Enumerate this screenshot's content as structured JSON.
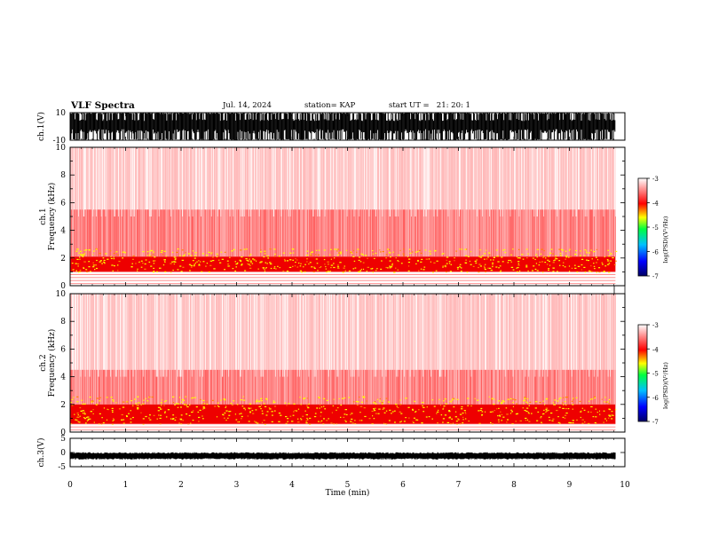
{
  "header": {
    "title": "VLF Spectra",
    "date": "Jul. 14, 2024",
    "station": "station= KAP",
    "start_ut": "start UT =   21: 20: 1"
  },
  "chart_data": [
    {
      "type": "line",
      "name": "ch1-waveform",
      "ylabel": "ch.1(V)",
      "ylim": [
        -10,
        10
      ],
      "yticks": [
        "10",
        "-10"
      ],
      "xlim": [
        0,
        10
      ],
      "data_end_min": 9.83
    },
    {
      "type": "heatmap",
      "name": "ch1-spectrogram",
      "ylabel": "ch.1\nFrequency (kHz)",
      "ylim": [
        0,
        10
      ],
      "yticks": [
        "0",
        "2",
        "4",
        "6",
        "8",
        "10"
      ],
      "xlim": [
        0,
        10
      ],
      "data_end_min": 9.83,
      "intense_band_khz": [
        1.0,
        2.1
      ],
      "moderate_band_khz": [
        2.1,
        5.5
      ],
      "colorbar": {
        "label": "log(PSD)(V²/Hz)",
        "range": [
          -7,
          -3
        ],
        "ticks": [
          "-3",
          "-4",
          "-5",
          "-6",
          "-7"
        ]
      }
    },
    {
      "type": "heatmap",
      "name": "ch2-spectrogram",
      "ylabel": "ch.2\nFrequency (kHz)",
      "ylim": [
        0,
        10
      ],
      "yticks": [
        "0",
        "2",
        "4",
        "6",
        "8",
        "10"
      ],
      "xlim": [
        0,
        10
      ],
      "data_end_min": 9.83,
      "intense_band_khz": [
        0.6,
        2.0
      ],
      "moderate_band_khz": [
        2.0,
        4.5
      ],
      "colorbar": {
        "label": "log(PSD)(V²/Hz)",
        "range": [
          -7,
          -3
        ],
        "ticks": [
          "-3",
          "-4",
          "-5",
          "-6",
          "-7"
        ]
      }
    },
    {
      "type": "line",
      "name": "ch3-waveform",
      "ylabel": "ch.3(V)",
      "ylim": [
        -5,
        5
      ],
      "yticks": [
        "5",
        "0",
        "-5"
      ],
      "xlim": [
        0,
        10
      ],
      "data_end_min": 9.83,
      "baseline_v": -1.2
    }
  ],
  "x_axis": {
    "label": "Time (min)",
    "ticks": [
      "0",
      "1",
      "2",
      "3",
      "4",
      "5",
      "6",
      "7",
      "8",
      "9",
      "10"
    ]
  },
  "colors": {
    "trace": "#000000",
    "colormap": [
      "#000066",
      "#0000ff",
      "#00c0ff",
      "#00ff40",
      "#ffff00",
      "#ff0000",
      "#ffffff"
    ]
  }
}
